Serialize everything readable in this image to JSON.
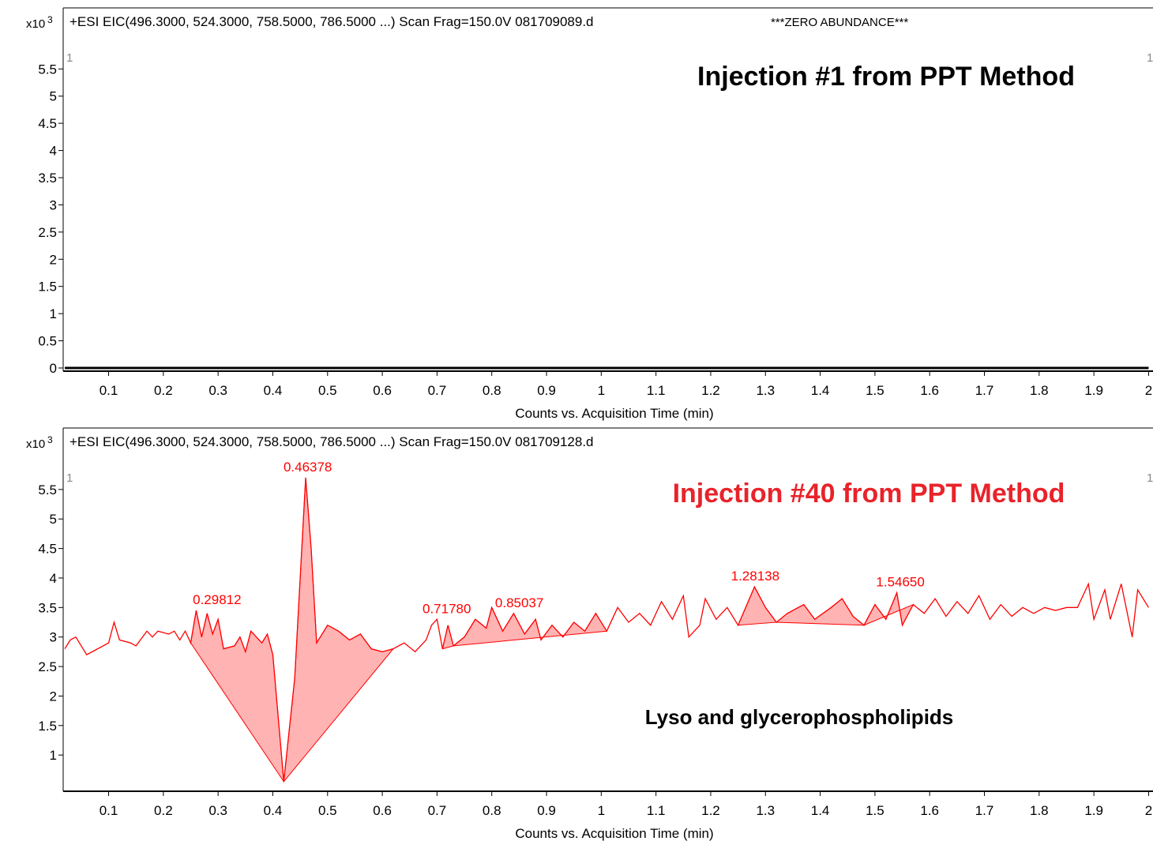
{
  "chart_data": [
    {
      "type": "line",
      "header": "+ESI EIC(496.3000, 524.3000, 758.5000, 786.5000 ...) Scan Frag=150.0V 081709089.d",
      "header_note": "***ZERO ABUNDANCE***",
      "y_unit": "x10",
      "y_unit_exponent": "3",
      "panel_markers": [
        "1",
        "1"
      ],
      "title": "Injection #1 from PPT Method",
      "title_color": "#000000",
      "x_label": "Counts vs. Acquisition Time (min)",
      "x": [
        0.02,
        2.0
      ],
      "values": [
        0,
        0
      ],
      "color": "#000000",
      "xlim": [
        0.017,
        2.008
      ],
      "xticks": [
        0.1,
        0.2,
        0.3,
        0.4,
        0.5,
        0.6,
        0.7,
        0.8,
        0.9,
        1,
        1.1,
        1.2,
        1.3,
        1.4,
        1.5,
        1.6,
        1.7,
        1.8,
        1.9,
        2
      ],
      "ylim": [
        0,
        6.1
      ],
      "yticks": [
        0,
        0.5,
        1,
        1.5,
        2,
        2.5,
        3,
        3.5,
        4,
        4.5,
        5,
        5.5
      ]
    },
    {
      "type": "line",
      "header": "+ESI EIC(496.3000, 524.3000, 758.5000, 786.5000 ...) Scan Frag=150.0V 081709128.d",
      "y_unit": "x10",
      "y_unit_exponent": "3",
      "panel_markers": [
        "1",
        "1"
      ],
      "title": "Injection #40 from PPT Method",
      "title_color": "#e8232a",
      "annotation": "Lyso and glycerophospholipids",
      "x_label": "Counts vs. Acquisition Time (min)",
      "x": [
        0.02,
        0.03,
        0.04,
        0.06,
        0.08,
        0.1,
        0.11,
        0.12,
        0.14,
        0.15,
        0.17,
        0.18,
        0.19,
        0.21,
        0.22,
        0.23,
        0.24,
        0.25,
        0.26,
        0.27,
        0.28,
        0.29,
        0.3,
        0.31,
        0.33,
        0.34,
        0.35,
        0.36,
        0.38,
        0.39,
        0.4,
        0.42,
        0.44,
        0.46,
        0.47,
        0.48,
        0.5,
        0.52,
        0.54,
        0.56,
        0.58,
        0.6,
        0.62,
        0.64,
        0.66,
        0.68,
        0.69,
        0.7,
        0.71,
        0.72,
        0.73,
        0.75,
        0.77,
        0.79,
        0.8,
        0.82,
        0.84,
        0.86,
        0.88,
        0.89,
        0.91,
        0.93,
        0.95,
        0.97,
        0.99,
        1.01,
        1.03,
        1.05,
        1.07,
        1.09,
        1.11,
        1.13,
        1.15,
        1.16,
        1.18,
        1.19,
        1.21,
        1.23,
        1.25,
        1.28,
        1.3,
        1.32,
        1.34,
        1.37,
        1.39,
        1.42,
        1.44,
        1.46,
        1.48,
        1.5,
        1.52,
        1.54,
        1.55,
        1.57,
        1.59,
        1.61,
        1.63,
        1.65,
        1.67,
        1.69,
        1.71,
        1.73,
        1.75,
        1.77,
        1.79,
        1.81,
        1.83,
        1.85,
        1.87,
        1.89,
        1.9,
        1.92,
        1.93,
        1.95,
        1.97,
        1.98,
        2.0
      ],
      "values": [
        2.8,
        2.95,
        3.0,
        2.7,
        2.8,
        2.9,
        3.25,
        2.95,
        2.9,
        2.85,
        3.1,
        3.0,
        3.1,
        3.05,
        3.1,
        2.95,
        3.1,
        2.9,
        3.45,
        3.0,
        3.4,
        3.05,
        3.3,
        2.8,
        2.85,
        3.0,
        2.75,
        3.1,
        2.9,
        3.05,
        2.7,
        0.55,
        2.3,
        5.7,
        4.5,
        2.9,
        3.2,
        3.1,
        2.95,
        3.05,
        2.8,
        2.75,
        2.8,
        2.9,
        2.75,
        2.95,
        3.2,
        3.3,
        2.8,
        3.2,
        2.85,
        3.0,
        3.3,
        3.15,
        3.5,
        3.1,
        3.4,
        3.05,
        3.3,
        2.95,
        3.2,
        3.0,
        3.25,
        3.1,
        3.4,
        3.1,
        3.5,
        3.25,
        3.4,
        3.2,
        3.6,
        3.3,
        3.7,
        3.0,
        3.2,
        3.65,
        3.3,
        3.5,
        3.2,
        3.85,
        3.5,
        3.25,
        3.4,
        3.55,
        3.3,
        3.5,
        3.65,
        3.35,
        3.2,
        3.55,
        3.3,
        3.75,
        3.2,
        3.55,
        3.4,
        3.65,
        3.35,
        3.6,
        3.4,
        3.7,
        3.3,
        3.55,
        3.35,
        3.5,
        3.4,
        3.5,
        3.45,
        3.5,
        3.5,
        3.9,
        3.3,
        3.8,
        3.3,
        3.9,
        3.0,
        3.8,
        3.5
      ],
      "color": "#ff0000",
      "fill_color": "#ffb3b3",
      "integrations": [
        [
          0.25,
          0.42
        ],
        [
          0.42,
          0.62
        ],
        [
          0.71,
          0.73
        ],
        [
          0.73,
          1.01
        ],
        [
          1.25,
          1.32
        ],
        [
          1.32,
          1.48
        ],
        [
          1.48,
          1.57
        ]
      ],
      "peaks": [
        {
          "x": 0.29812,
          "y": 3.45,
          "label": "0.29812"
        },
        {
          "x": 0.46378,
          "y": 5.7,
          "label": "0.46378"
        },
        {
          "x": 0.7178,
          "y": 3.3,
          "label": "0.71780"
        },
        {
          "x": 0.85037,
          "y": 3.4,
          "label": "0.85037"
        },
        {
          "x": 1.28138,
          "y": 3.85,
          "label": "1.28138"
        },
        {
          "x": 1.5465,
          "y": 3.75,
          "label": "1.54650"
        }
      ],
      "xlim": [
        0.017,
        2.008
      ],
      "xticks": [
        0.1,
        0.2,
        0.3,
        0.4,
        0.5,
        0.6,
        0.7,
        0.8,
        0.9,
        1,
        1.1,
        1.2,
        1.3,
        1.4,
        1.5,
        1.6,
        1.7,
        1.8,
        1.9,
        2
      ],
      "ylim": [
        0.44,
        6.06
      ],
      "yticks": [
        1,
        1.5,
        2,
        2.5,
        3,
        3.5,
        4,
        4.5,
        5,
        5.5
      ]
    }
  ]
}
